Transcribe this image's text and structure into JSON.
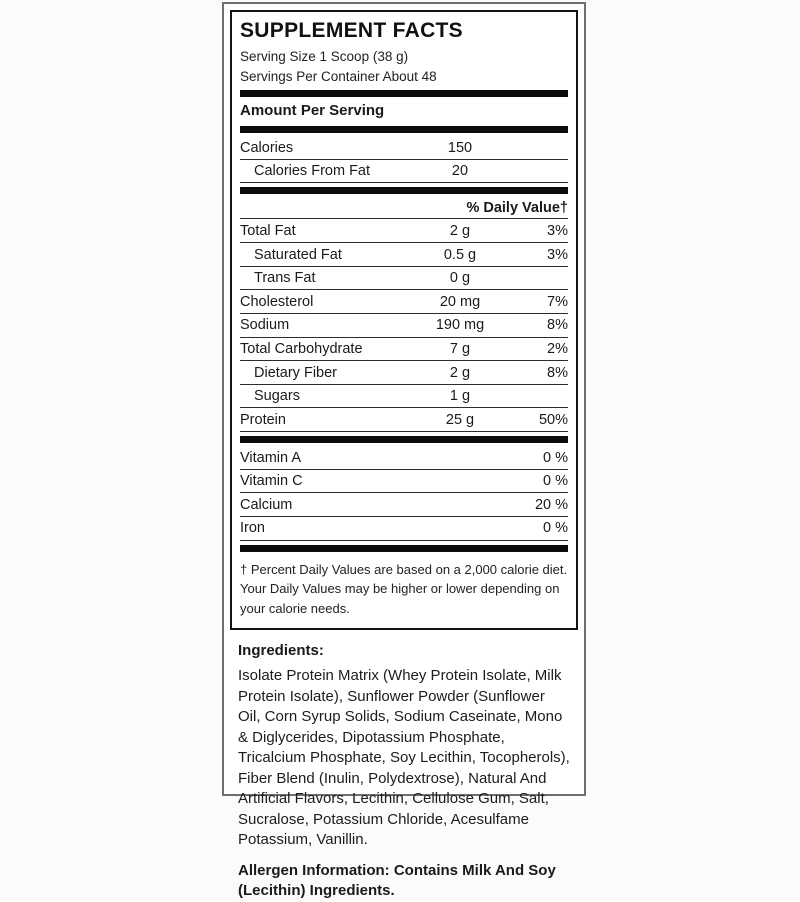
{
  "colors": {
    "label_background": "#ffffff",
    "page_background": "#fbfbfb",
    "text": "#1a1a1a",
    "rule_bar": "#0c0c0c",
    "panel_border": "#141414",
    "outer_border": "#6f6f6f"
  },
  "panel": {
    "title": "SUPPLEMENT FACTS",
    "serving_size": "Serving Size 1 Scoop (38 g)",
    "servings_per_container": "Servings Per Container About 48",
    "amount_per_serving": "Amount Per Serving",
    "calories_rows": [
      {
        "name": "Calories",
        "amount": "150",
        "dv": "",
        "indent": false
      },
      {
        "name": "Calories From Fat",
        "amount": "20",
        "dv": "",
        "indent": true
      }
    ],
    "daily_value_header": "% Daily Value†",
    "nutrient_rows": [
      {
        "name": "Total Fat",
        "amount": "2 g",
        "dv": "3%",
        "indent": false
      },
      {
        "name": "Saturated Fat",
        "amount": "0.5 g",
        "dv": "3%",
        "indent": true
      },
      {
        "name": "Trans Fat",
        "amount": "0 g",
        "dv": "",
        "indent": true
      },
      {
        "name": "Cholesterol",
        "amount": "20 mg",
        "dv": "7%",
        "indent": false
      },
      {
        "name": "Sodium",
        "amount": "190 mg",
        "dv": "8%",
        "indent": false
      },
      {
        "name": "Total Carbohydrate",
        "amount": "7 g",
        "dv": "2%",
        "indent": false
      },
      {
        "name": "Dietary Fiber",
        "amount": "2 g",
        "dv": "8%",
        "indent": true
      },
      {
        "name": "Sugars",
        "amount": "1 g",
        "dv": "",
        "indent": true
      },
      {
        "name": "Protein",
        "amount": "25 g",
        "dv": "50%",
        "indent": false
      }
    ],
    "vitamin_rows": [
      {
        "name": "Vitamin A",
        "amount": "",
        "dv": "0 %",
        "indent": false
      },
      {
        "name": "Vitamin C",
        "amount": "",
        "dv": "0 %",
        "indent": false
      },
      {
        "name": "Calcium",
        "amount": "",
        "dv": "20 %",
        "indent": false
      },
      {
        "name": "Iron",
        "amount": "",
        "dv": "0 %",
        "indent": false
      }
    ],
    "footnote": "† Percent Daily Values are based on a 2,000 calorie diet. Your Daily Values may be higher or lower depending on your calorie needs."
  },
  "ingredients": {
    "heading": "Ingredients:",
    "text": "Isolate Protein Matrix (Whey Protein Isolate, Milk Protein Isolate), Sunflower Powder (Sunflower Oil, Corn Syrup Solids, Sodium Caseinate, Mono & Diglycerides, Dipotassium Phosphate, Tricalcium Phosphate, Soy Lecithin, Tocopherols), Fiber Blend (Inulin, Polydextrose), Natural And Artificial Flavors, Lecithin, Cellulose Gum, Salt, Sucralose, Potassium Chloride, Acesulfame Potassium, Vanillin.",
    "allergen": "Allergen Information: Contains Milk And Soy (Lecithin) Ingredients."
  }
}
